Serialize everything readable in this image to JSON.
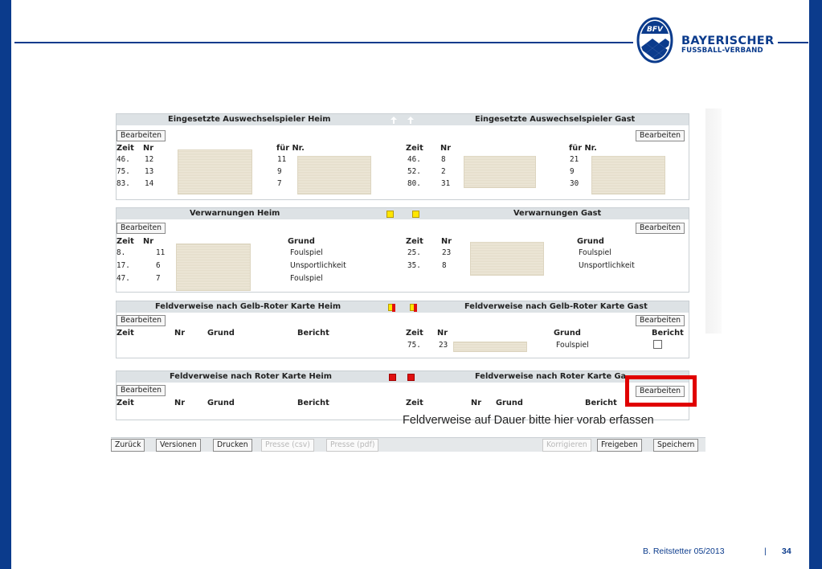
{
  "brand": {
    "logo_mark": "BFV",
    "line1": "BAYERISCHER",
    "line2": "FUSSBALL-VERBAND",
    "color": "#0b3b8c"
  },
  "sections": {
    "subs_home": {
      "title": "Eingesetzte Auswechselspieler Heim",
      "button": "Bearbeiten",
      "headers": {
        "zeit": "Zeit",
        "nr": "Nr",
        "fuer": "für Nr."
      },
      "rows": [
        {
          "zeit": "46.",
          "nr": "12",
          "fuer": "11"
        },
        {
          "zeit": "75.",
          "nr": "13",
          "fuer": "9"
        },
        {
          "zeit": "83.",
          "nr": "14",
          "fuer": "7"
        }
      ]
    },
    "subs_guest": {
      "title": "Eingesetzte Auswechselspieler Gast",
      "button": "Bearbeiten",
      "headers": {
        "zeit": "Zeit",
        "nr": "Nr",
        "fuer": "für Nr."
      },
      "rows": [
        {
          "zeit": "46.",
          "nr": "8",
          "fuer": "21"
        },
        {
          "zeit": "52.",
          "nr": "2",
          "fuer": "9"
        },
        {
          "zeit": "80.",
          "nr": "31",
          "fuer": "30"
        }
      ]
    },
    "warn_home": {
      "title": "Verwarnungen Heim",
      "button": "Bearbeiten",
      "headers": {
        "zeit": "Zeit",
        "nr": "Nr",
        "grund": "Grund"
      },
      "rows": [
        {
          "zeit": "8.",
          "nr": "11",
          "grund": "Foulspiel"
        },
        {
          "zeit": "17.",
          "nr": "6",
          "grund": "Unsportlichkeit"
        },
        {
          "zeit": "47.",
          "nr": "7",
          "grund": "Foulspiel"
        }
      ]
    },
    "warn_guest": {
      "title": "Verwarnungen Gast",
      "button": "Bearbeiten",
      "headers": {
        "zeit": "Zeit",
        "nr": "Nr",
        "grund": "Grund"
      },
      "rows": [
        {
          "zeit": "25.",
          "nr": "23",
          "grund": "Foulspiel"
        },
        {
          "zeit": "35.",
          "nr": "8",
          "grund": "Unsportlichkeit"
        }
      ]
    },
    "gelbrot_home": {
      "title": "Feldverweise nach Gelb-Roter Karte Heim",
      "button": "Bearbeiten",
      "headers": {
        "zeit": "Zeit",
        "nr": "Nr",
        "grund": "Grund",
        "bericht": "Bericht"
      }
    },
    "gelbrot_guest": {
      "title": "Feldverweise nach Gelb-Roter Karte Gast",
      "button": "Bearbeiten",
      "headers": {
        "zeit": "Zeit",
        "nr": "Nr",
        "grund": "Grund",
        "bericht": "Bericht"
      },
      "rows": [
        {
          "zeit": "75.",
          "nr": "23",
          "grund": "Foulspiel"
        }
      ]
    },
    "rot_home": {
      "title": "Feldverweise nach Roter Karte Heim",
      "button": "Bearbeiten",
      "headers": {
        "zeit": "Zeit",
        "nr": "Nr",
        "grund": "Grund",
        "bericht": "Bericht"
      }
    },
    "rot_guest": {
      "title": "Feldverweise nach Roter Karte Ga",
      "button": "Bearbeiten",
      "headers": {
        "zeit": "Zeit",
        "nr": "Nr",
        "grund": "Grund",
        "bericht": "Bericht"
      }
    }
  },
  "annotation": "Feldverweise auf Dauer bitte hier vorab erfassen",
  "toolbar": {
    "zurueck": "Zurück",
    "versionen": "Versionen",
    "drucken": "Drucken",
    "presse_csv": "Presse (csv)",
    "presse_pdf": "Presse (pdf)",
    "korrigieren": "Korrigieren",
    "freigeben": "Freigeben",
    "speichern": "Speichern"
  },
  "footer": {
    "author": "B. Reitstetter  05/2013",
    "separator": "|",
    "page": "34"
  },
  "colors": {
    "accent_blue": "#0b3b8c",
    "highlight_red": "#e00000",
    "yellow_card": "#ffe600",
    "red_card": "#e01010"
  }
}
